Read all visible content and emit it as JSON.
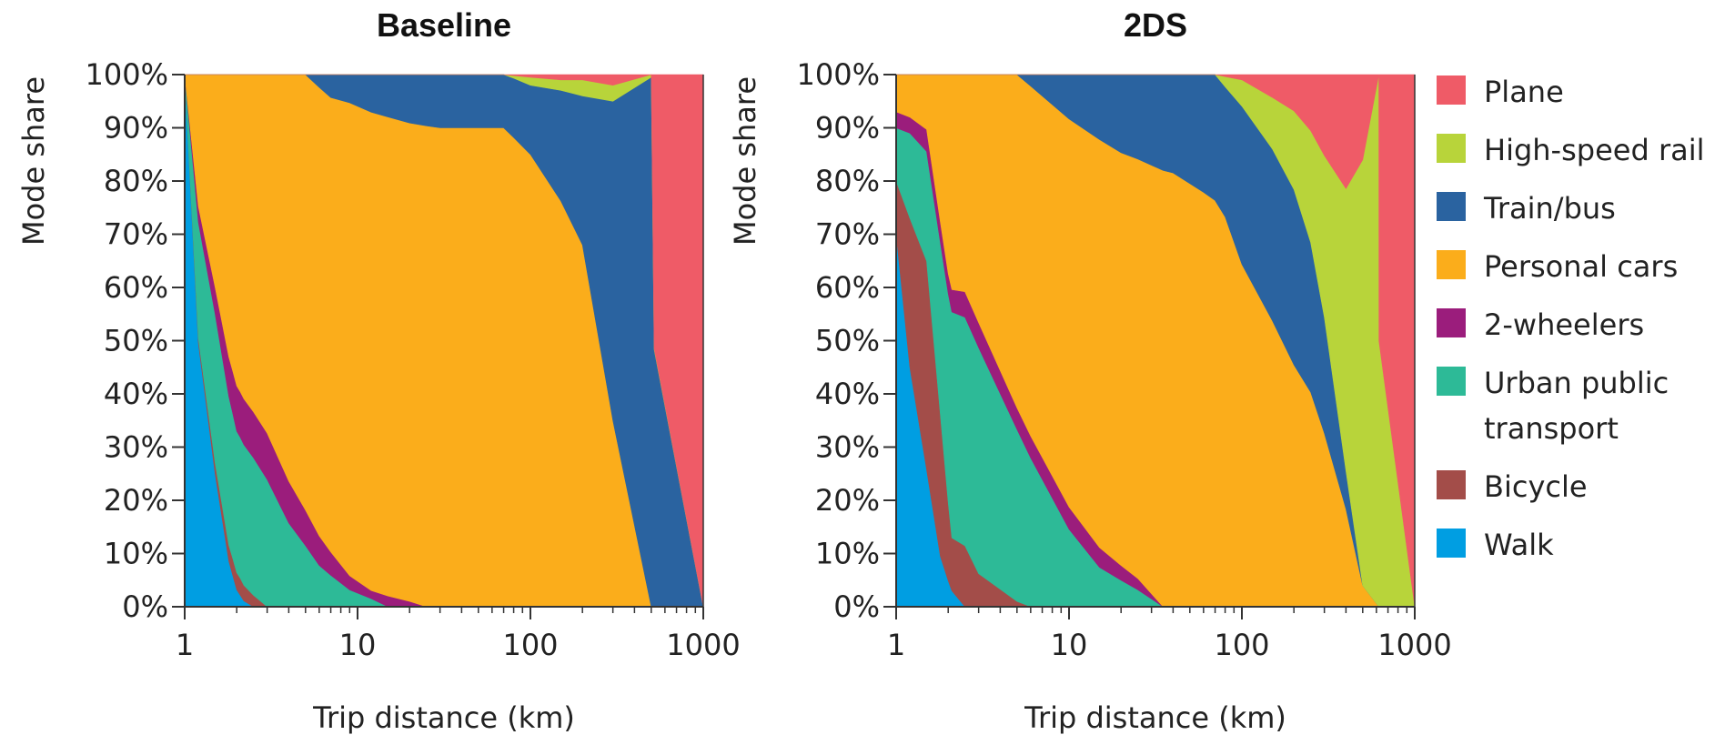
{
  "chart_data": [
    {
      "type": "area",
      "stacked": true,
      "x_scale": "log",
      "title": "Baseline",
      "xlabel": "Trip distance (km)",
      "ylabel": "Mode share",
      "xlim": [
        1,
        1000
      ],
      "ylim": [
        0,
        100
      ],
      "x_ticks": [
        "1",
        "10",
        "100",
        "1000"
      ],
      "y_ticks": [
        "0%",
        "10%",
        "20%",
        "30%",
        "40%",
        "50%",
        "60%",
        "70%",
        "80%",
        "90%",
        "100%"
      ],
      "series": [
        {
          "name": "Walk",
          "points": [
            [
              1,
              100
            ],
            [
              1.2,
              50
            ],
            [
              1.5,
              25
            ],
            [
              1.8,
              8
            ],
            [
              2,
              3
            ],
            [
              2.2,
              1
            ],
            [
              2.5,
              0
            ],
            [
              1000,
              0
            ]
          ]
        },
        {
          "name": "Bicycle",
          "points": [
            [
              1,
              0
            ],
            [
              1.5,
              2
            ],
            [
              1.9,
              3
            ],
            [
              2.1,
              3
            ],
            [
              2.5,
              2
            ],
            [
              3,
              0
            ],
            [
              1000,
              0
            ]
          ]
        },
        {
          "name": "Urban public transport",
          "points": [
            [
              1,
              0
            ],
            [
              1.2,
              22
            ],
            [
              1.5,
              28
            ],
            [
              2,
              25
            ],
            [
              2.5,
              24
            ],
            [
              3,
              22
            ],
            [
              4,
              14
            ],
            [
              6,
              7
            ],
            [
              9,
              3
            ],
            [
              12,
              1.5
            ],
            [
              15,
              0
            ],
            [
              1000,
              0
            ]
          ]
        },
        {
          "name": "2-wheelers",
          "points": [
            [
              1,
              0
            ],
            [
              1.2,
              3
            ],
            [
              1.5,
              5
            ],
            [
              2,
              8
            ],
            [
              3,
              8
            ],
            [
              4,
              7
            ],
            [
              6,
              5
            ],
            [
              9,
              2.5
            ],
            [
              12,
              1.5
            ],
            [
              15,
              2
            ],
            [
              20,
              1
            ],
            [
              25,
              0
            ],
            [
              1000,
              0
            ]
          ]
        },
        {
          "name": "Personal cars",
          "points": [
            [
              1,
              0
            ],
            [
              1.2,
              25
            ],
            [
              1.5,
              40
            ],
            [
              2,
              55
            ],
            [
              3,
              62
            ],
            [
              4,
              68
            ],
            [
              6,
              76
            ],
            [
              9,
              84
            ],
            [
              12,
              89
            ],
            [
              15,
              89
            ],
            [
              20,
              89
            ],
            [
              30,
              90
            ],
            [
              70,
              90
            ],
            [
              100,
              85
            ],
            [
              150,
              77
            ],
            [
              200,
              68
            ],
            [
              300,
              35
            ],
            [
              500,
              0
            ],
            [
              1000,
              0
            ]
          ]
        },
        {
          "name": "Train/bus",
          "points": [
            [
              1,
              0
            ],
            [
              4,
              0
            ],
            [
              5,
              0
            ],
            [
              7,
              4
            ],
            [
              9,
              5
            ],
            [
              12,
              7
            ],
            [
              20,
              9
            ],
            [
              30,
              10
            ],
            [
              70,
              10
            ],
            [
              100,
              13
            ],
            [
              150,
              21
            ],
            [
              200,
              28
            ],
            [
              300,
              60
            ],
            [
              500,
              99.5
            ],
            [
              1000,
              0
            ]
          ]
        },
        {
          "name": "High-speed rail",
          "points": [
            [
              1,
              0
            ],
            [
              70,
              0
            ],
            [
              80,
              0.5
            ],
            [
              100,
              1.5
            ],
            [
              150,
              2
            ],
            [
              200,
              3
            ],
            [
              300,
              3
            ],
            [
              500,
              0.5
            ],
            [
              1000,
              0
            ]
          ]
        },
        {
          "name": "Plane",
          "points": [
            [
              1,
              0
            ],
            [
              70,
              0
            ],
            [
              100,
              0.5
            ],
            [
              150,
              1
            ],
            [
              200,
              1
            ],
            [
              300,
              2
            ],
            [
              500,
              0
            ],
            [
              520,
              100
            ],
            [
              1000,
              100
            ]
          ]
        }
      ]
    },
    {
      "type": "area",
      "stacked": true,
      "x_scale": "log",
      "title": "2DS",
      "xlabel": "Trip distance (km)",
      "ylabel": "Mode share",
      "xlim": [
        1,
        1000
      ],
      "ylim": [
        0,
        100
      ],
      "x_ticks": [
        "1",
        "10",
        "100",
        "1000"
      ],
      "y_ticks": [
        "0%",
        "10%",
        "20%",
        "30%",
        "40%",
        "50%",
        "60%",
        "70%",
        "80%",
        "90%",
        "100%"
      ],
      "series": [
        {
          "name": "Walk",
          "points": [
            [
              1,
              70
            ],
            [
              1.2,
              45
            ],
            [
              1.5,
              25
            ],
            [
              1.8,
              10
            ],
            [
              2.1,
              3
            ],
            [
              2.5,
              0
            ],
            [
              1000,
              0
            ]
          ]
        },
        {
          "name": "Bicycle",
          "points": [
            [
              1,
              10
            ],
            [
              1.2,
              28
            ],
            [
              1.5,
              38
            ],
            [
              1.8,
              28
            ],
            [
              2.1,
              10
            ],
            [
              2.5,
              12
            ],
            [
              3,
              6
            ],
            [
              5,
              1
            ],
            [
              6,
              0
            ],
            [
              1000,
              0
            ]
          ]
        },
        {
          "name": "Urban public transport",
          "points": [
            [
              1,
              10
            ],
            [
              1.2,
              16
            ],
            [
              1.5,
              20
            ],
            [
              2,
              42
            ],
            [
              2.5,
              45
            ],
            [
              3,
              41
            ],
            [
              5,
              32
            ],
            [
              10,
              14
            ],
            [
              15,
              7
            ],
            [
              25,
              3
            ],
            [
              35,
              0
            ],
            [
              1000,
              0
            ]
          ]
        },
        {
          "name": "2-wheelers",
          "points": [
            [
              1,
              3
            ],
            [
              1.2,
              3
            ],
            [
              1.5,
              4
            ],
            [
              2,
              4
            ],
            [
              2.5,
              5
            ],
            [
              3,
              4.5
            ],
            [
              5,
              4
            ],
            [
              10,
              4
            ],
            [
              15,
              3.5
            ],
            [
              25,
              2
            ],
            [
              35,
              0
            ],
            [
              1000,
              0
            ]
          ]
        },
        {
          "name": "Personal cars",
          "points": [
            [
              1,
              7
            ],
            [
              1.2,
              8
            ],
            [
              1.5,
              10
            ],
            [
              2,
              40
            ],
            [
              3,
              45
            ],
            [
              5,
              62
            ],
            [
              10,
              70
            ],
            [
              20,
              74
            ],
            [
              40,
              75
            ],
            [
              60,
              74
            ],
            [
              80,
              72
            ],
            [
              100,
              65
            ],
            [
              150,
              50
            ],
            [
              200,
              40
            ],
            [
              300,
              30
            ],
            [
              400,
              18
            ],
            [
              500,
              4
            ],
            [
              620,
              0
            ],
            [
              1000,
              0
            ]
          ]
        },
        {
          "name": "Train/bus",
          "points": [
            [
              1,
              0
            ],
            [
              5,
              0
            ],
            [
              10,
              8
            ],
            [
              20,
              14
            ],
            [
              40,
              17
            ],
            [
              60,
              21
            ],
            [
              80,
              24
            ],
            [
              100,
              30
            ],
            [
              150,
              30
            ],
            [
              200,
              29
            ],
            [
              300,
              20
            ],
            [
              400,
              7
            ],
            [
              500,
              0
            ],
            [
              620,
              0
            ],
            [
              1000,
              0
            ]
          ]
        },
        {
          "name": "High-speed rail",
          "points": [
            [
              1,
              0
            ],
            [
              70,
              0
            ],
            [
              100,
              5
            ],
            [
              150,
              9
            ],
            [
              200,
              13
            ],
            [
              250,
              18
            ],
            [
              300,
              28
            ],
            [
              400,
              52
            ],
            [
              500,
              80
            ],
            [
              620,
              100
            ],
            [
              1000,
              0
            ]
          ]
        },
        {
          "name": "Plane",
          "points": [
            [
              1,
              0
            ],
            [
              70,
              0
            ],
            [
              100,
              1
            ],
            [
              150,
              4
            ],
            [
              200,
              6
            ],
            [
              250,
              9
            ],
            [
              300,
              14
            ],
            [
              400,
              21
            ],
            [
              500,
              16
            ],
            [
              620,
              0
            ],
            [
              621,
              100
            ],
            [
              1000,
              100
            ]
          ]
        }
      ]
    }
  ],
  "legend": {
    "placement": "right",
    "items": [
      {
        "label_lines": [
          "Plane"
        ],
        "color": "#ef5b67"
      },
      {
        "label_lines": [
          "High-speed rail"
        ],
        "color": "#b8d43a"
      },
      {
        "label_lines": [
          "Train/bus"
        ],
        "color": "#2a63a0"
      },
      {
        "label_lines": [
          "Personal cars"
        ],
        "color": "#fbad1b"
      },
      {
        "label_lines": [
          "2-wheelers"
        ],
        "color": "#9b1d7c"
      },
      {
        "label_lines": [
          "Urban public",
          "transport"
        ],
        "color": "#2dba97"
      },
      {
        "label_lines": [
          "Bicycle"
        ],
        "color": "#a34d49"
      },
      {
        "label_lines": [
          "Walk"
        ],
        "color": "#009ee2"
      }
    ]
  }
}
